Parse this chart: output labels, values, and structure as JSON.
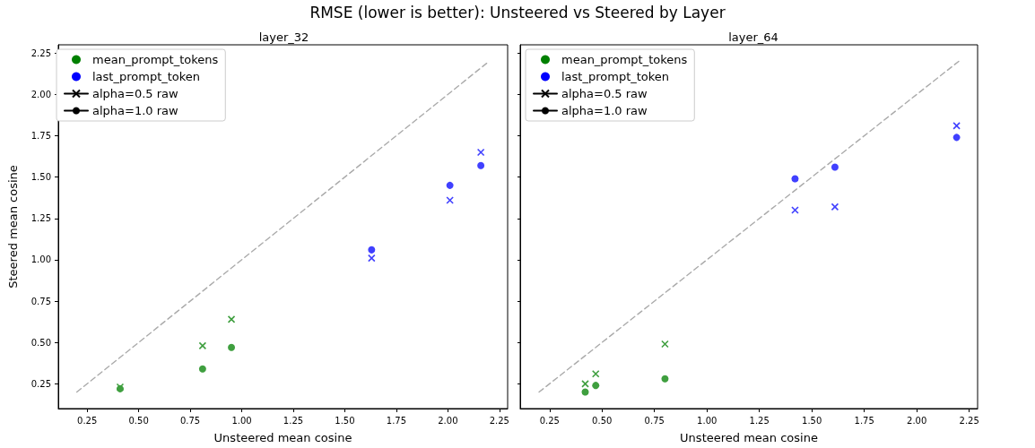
{
  "chart_data": [
    {
      "type": "scatter",
      "title": "RMSE (lower is better): Unsteered vs Steered by Layer",
      "subtitle": "layer_32",
      "xlabel": "Unsteered mean cosine",
      "ylabel": "Steered mean cosine",
      "xlim": [
        0.11,
        2.29
      ],
      "ylim": [
        0.1,
        2.3
      ],
      "xticks": [
        0.25,
        {
          "value": 0.5,
          "label": "0.50"
        },
        0.75,
        {
          "value": 1.0,
          "label": "1.00"
        },
        1.25,
        {
          "value": 1.5,
          "label": "1.50"
        },
        1.75,
        {
          "value": 2.0,
          "label": "2.00"
        },
        2.25
      ],
      "yticks": [
        0.25,
        {
          "value": 0.5,
          "label": "0.50"
        },
        0.75,
        {
          "value": 1.0,
          "label": "1.00"
        },
        1.25,
        {
          "value": 1.5,
          "label": "1.50"
        },
        1.75,
        {
          "value": 2.0,
          "label": "2.00"
        },
        2.25
      ],
      "grid": false,
      "legend": "top left",
      "series": [
        {
          "type": "line",
          "color": "#aaaaaa",
          "line_style": "dashed",
          "marker": "none",
          "x": [
            0.2,
            2.2
          ],
          "values": [
            0.2,
            2.2
          ]
        },
        {
          "color": "#3f9f3f",
          "marker": "cross",
          "x": [
            0.41,
            0.81,
            0.95
          ],
          "values": [
            0.23,
            0.48,
            0.64
          ]
        },
        {
          "color": "#3f9f3f",
          "marker": "circle",
          "x": [
            0.41,
            0.81,
            0.95
          ],
          "values": [
            0.22,
            0.34,
            0.47
          ]
        },
        {
          "color": "#4040ff",
          "marker": "cross",
          "x": [
            1.63,
            2.01,
            2.16
          ],
          "values": [
            1.01,
            1.36,
            1.65
          ]
        },
        {
          "color": "#4040ff",
          "marker": "circle",
          "x": [
            1.63,
            2.01,
            2.16
          ],
          "values": [
            1.06,
            1.45,
            1.57
          ]
        },
        {
          "name": "mean_prompt_tokens",
          "color": "#008000",
          "marker": "circle"
        },
        {
          "name": "last_prompt_token",
          "color": "#0000ff",
          "marker": "circle"
        },
        {
          "type": "line",
          "name": "alpha=0.5 raw",
          "color": "#000000",
          "marker": "cross",
          "line_style": "solid"
        },
        {
          "type": "line",
          "name": "alpha=1.0 raw",
          "color": "#000000",
          "marker": "circle",
          "line_style": "solid"
        }
      ]
    },
    {
      "type": "scatter",
      "title": "layer_64",
      "xlabel": "Unsteered mean cosine",
      "xlim": [
        0.11,
        2.29
      ],
      "ylim": [
        0.1,
        2.3
      ],
      "xticks": [
        0.25,
        {
          "value": 0.5,
          "label": "0.50"
        },
        0.75,
        {
          "value": 1.0,
          "label": "1.00"
        },
        1.25,
        {
          "value": 1.5,
          "label": "1.50"
        },
        1.75,
        {
          "value": 2.0,
          "label": "2.00"
        },
        2.25
      ],
      "yticks": [
        0.25,
        0.5,
        0.75,
        1.0,
        1.25,
        1.5,
        1.75,
        2.0,
        2.25
      ],
      "grid": false,
      "legend": "top left",
      "tick_labels": "x",
      "series": [
        {
          "type": "line",
          "color": "#aaaaaa",
          "line_style": "dashed",
          "marker": "none",
          "x": [
            0.2,
            2.2
          ],
          "values": [
            0.2,
            2.2
          ]
        },
        {
          "color": "#3f9f3f",
          "marker": "cross",
          "x": [
            0.42,
            0.47,
            0.8
          ],
          "values": [
            0.25,
            0.31,
            0.49
          ]
        },
        {
          "color": "#3f9f3f",
          "marker": "circle",
          "x": [
            0.42,
            0.47,
            0.8
          ],
          "values": [
            0.2,
            0.24,
            0.28
          ]
        },
        {
          "color": "#4040ff",
          "marker": "cross",
          "x": [
            1.42,
            1.61,
            2.19
          ],
          "values": [
            1.3,
            1.32,
            1.81
          ]
        },
        {
          "color": "#4040ff",
          "marker": "circle",
          "x": [
            1.42,
            1.61,
            2.19
          ],
          "values": [
            1.49,
            1.56,
            1.74
          ]
        },
        {
          "name": "mean_prompt_tokens",
          "color": "#008000",
          "marker": "circle"
        },
        {
          "name": "last_prompt_token",
          "color": "#0000ff",
          "marker": "circle"
        },
        {
          "type": "line",
          "name": "alpha=0.5 raw",
          "color": "#000000",
          "marker": "cross",
          "line_style": "solid"
        },
        {
          "type": "line",
          "name": "alpha=1.0 raw",
          "color": "#000000",
          "marker": "circle",
          "line_style": "solid"
        }
      ]
    }
  ]
}
